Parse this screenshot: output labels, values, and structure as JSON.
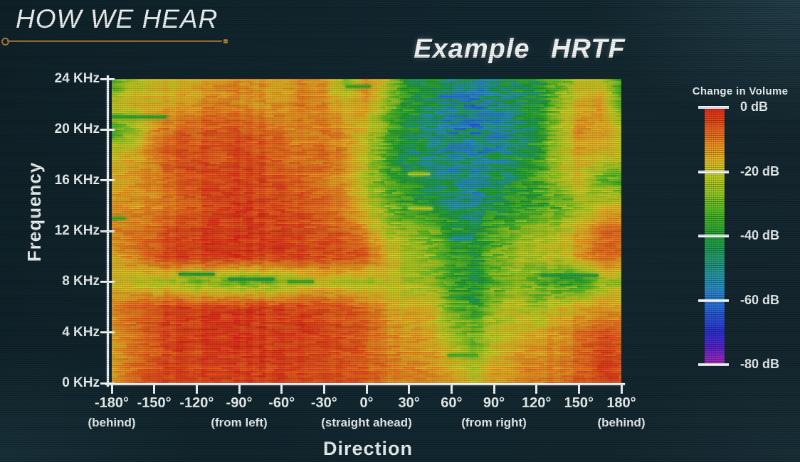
{
  "slide": {
    "title": "HOW WE HEAR",
    "accent_color": "#a07a42",
    "background_color": "#112530",
    "text_color": "#e9eff0"
  },
  "chart_data": {
    "type": "heatmap",
    "title": "Example HRTF",
    "xlabel": "Direction",
    "ylabel": "Frequency",
    "x_range_deg": [
      -180,
      180
    ],
    "y_range_khz": [
      0,
      24
    ],
    "value_range_db": [
      0,
      -80
    ],
    "x_ticks": [
      {
        "deg": -180,
        "label": "-180°"
      },
      {
        "deg": -150,
        "label": "-150°"
      },
      {
        "deg": -120,
        "label": "-120°"
      },
      {
        "deg": -90,
        "label": "-90°"
      },
      {
        "deg": -60,
        "label": "-60°"
      },
      {
        "deg": -30,
        "label": "-30°"
      },
      {
        "deg": 0,
        "label": "0°"
      },
      {
        "deg": 30,
        "label": "30°"
      },
      {
        "deg": 60,
        "label": "60°"
      },
      {
        "deg": 90,
        "label": "90°"
      },
      {
        "deg": 120,
        "label": "120°"
      },
      {
        "deg": 150,
        "label": "150°"
      },
      {
        "deg": 180,
        "label": "180°"
      }
    ],
    "x_sub_labels": [
      {
        "deg": -180,
        "label": "(behind)"
      },
      {
        "deg": -90,
        "label": "(from left)"
      },
      {
        "deg": 0,
        "label": "(straight ahead)"
      },
      {
        "deg": 90,
        "label": "(from right)"
      },
      {
        "deg": 180,
        "label": "(behind)"
      }
    ],
    "y_ticks": [
      {
        "khz": 24,
        "label": "24 KHz"
      },
      {
        "khz": 20,
        "label": "20 KHz"
      },
      {
        "khz": 16,
        "label": "16 KHz"
      },
      {
        "khz": 12,
        "label": "12 KHz"
      },
      {
        "khz": 8,
        "label": "8 KHz"
      },
      {
        "khz": 4,
        "label": "4 KHz"
      },
      {
        "khz": 0,
        "label": "0 KHz"
      }
    ],
    "colorbar": {
      "title": "Change in Volume",
      "ticks": [
        {
          "db": 0,
          "label": "0 dB"
        },
        {
          "db": -20,
          "label": "-20 dB"
        },
        {
          "db": -40,
          "label": "-40 dB"
        },
        {
          "db": -60,
          "label": "-60 dB"
        },
        {
          "db": -80,
          "label": "-80 dB"
        }
      ]
    },
    "colormap_stops": [
      [
        0,
        229,
        40,
        26
      ],
      [
        -8,
        240,
        112,
        32
      ],
      [
        -15,
        238,
        180,
        38
      ],
      [
        -20,
        208,
        210,
        38
      ],
      [
        -26,
        158,
        205,
        36
      ],
      [
        -32,
        88,
        190,
        40
      ],
      [
        -40,
        34,
        164,
        52
      ],
      [
        -48,
        36,
        158,
        122
      ],
      [
        -55,
        42,
        148,
        196
      ],
      [
        -62,
        42,
        110,
        220
      ],
      [
        -70,
        44,
        48,
        212
      ],
      [
        -75,
        96,
        38,
        206
      ],
      [
        -80,
        176,
        44,
        188
      ]
    ],
    "grid_x_deg": [
      -180,
      -165,
      -150,
      -135,
      -120,
      -105,
      -90,
      -75,
      -60,
      -45,
      -30,
      -15,
      0,
      15,
      30,
      45,
      60,
      75,
      90,
      105,
      120,
      135,
      150,
      165,
      180
    ],
    "grid_y_khz": [
      24,
      22,
      20,
      18,
      16,
      14,
      12,
      10,
      8,
      6,
      4,
      2,
      0
    ],
    "grid_db": [
      [
        -36,
        -22,
        -18,
        -20,
        -16,
        -13,
        -12,
        -14,
        -16,
        -12,
        -14,
        -26,
        -12,
        -22,
        -38,
        -42,
        -45,
        -48,
        -46,
        -44,
        -40,
        -30,
        -22,
        -20,
        -36
      ],
      [
        -20,
        -18,
        -16,
        -16,
        -13,
        -10,
        -12,
        -13,
        -14,
        -10,
        -12,
        -18,
        -14,
        -26,
        -40,
        -46,
        -50,
        -54,
        -50,
        -46,
        -42,
        -26,
        -16,
        -14,
        -30
      ],
      [
        -34,
        -26,
        -12,
        -9,
        -7,
        -6,
        -6,
        -8,
        -10,
        -12,
        -10,
        -14,
        -20,
        -32,
        -42,
        -48,
        -52,
        -55,
        -52,
        -46,
        -40,
        -24,
        -13,
        -14,
        -22
      ],
      [
        -18,
        -16,
        -10,
        -6,
        -5,
        -6,
        -5,
        -6,
        -8,
        -10,
        -8,
        -12,
        -22,
        -34,
        -44,
        -48,
        -50,
        -52,
        -50,
        -44,
        -38,
        -22,
        -16,
        -18,
        -20
      ],
      [
        -16,
        -14,
        -12,
        -8,
        -5,
        -4,
        -4,
        -5,
        -6,
        -8,
        -10,
        -14,
        -24,
        -32,
        -40,
        -46,
        -48,
        -50,
        -46,
        -42,
        -34,
        -24,
        -18,
        -30,
        -34
      ],
      [
        -14,
        -13,
        -12,
        -10,
        -6,
        -4,
        -3,
        -4,
        -5,
        -6,
        -8,
        -12,
        -20,
        -28,
        -36,
        -42,
        -46,
        -48,
        -44,
        -38,
        -34,
        -33,
        -25,
        -20,
        -18
      ],
      [
        -12,
        -10,
        -8,
        -5,
        -4,
        -3,
        -3,
        -4,
        -4,
        -5,
        -6,
        -8,
        -14,
        -22,
        -26,
        -30,
        -38,
        -42,
        -34,
        -28,
        -24,
        -22,
        -16,
        -10,
        -8
      ],
      [
        -16,
        -12,
        -6,
        -4,
        -3,
        -2,
        -2,
        -3,
        -3,
        -4,
        -4,
        -5,
        -8,
        -16,
        -22,
        -26,
        -34,
        -40,
        -30,
        -24,
        -22,
        -20,
        -14,
        -8,
        -10
      ],
      [
        -18,
        -20,
        -22,
        -24,
        -28,
        -26,
        -30,
        -28,
        -26,
        -22,
        -20,
        -22,
        -24,
        -20,
        -24,
        -26,
        -36,
        -42,
        -32,
        -26,
        -30,
        -36,
        -36,
        -26,
        -24
      ],
      [
        -12,
        -8,
        -5,
        -4,
        -4,
        -3,
        -3,
        -4,
        -4,
        -4,
        -5,
        -6,
        -10,
        -14,
        -16,
        -18,
        -30,
        -36,
        -26,
        -20,
        -26,
        -18,
        -16,
        -14,
        -16
      ],
      [
        -14,
        -10,
        -6,
        -4,
        -3,
        -2,
        -2,
        -3,
        -3,
        -3,
        -4,
        -5,
        -8,
        -12,
        -14,
        -16,
        -24,
        -30,
        -22,
        -18,
        -16,
        -14,
        -10,
        -6,
        -8
      ],
      [
        -16,
        -10,
        -6,
        -4,
        -4,
        -3,
        -3,
        -3,
        -4,
        -4,
        -4,
        -6,
        -8,
        -10,
        -12,
        -14,
        -18,
        -24,
        -18,
        -14,
        -12,
        -12,
        -8,
        -4,
        -6
      ],
      [
        -14,
        -8,
        -5,
        -4,
        -4,
        -4,
        -4,
        -4,
        -4,
        -5,
        -5,
        -6,
        -8,
        -10,
        -12,
        -12,
        -14,
        -18,
        -14,
        -12,
        -10,
        -10,
        -8,
        -5,
        -6
      ]
    ],
    "streaks": [
      {
        "d0": -180,
        "d1": -142,
        "khz": 21.0,
        "db": -38
      },
      {
        "d0": -180,
        "d1": -171,
        "khz": 13.0,
        "db": -35
      },
      {
        "d0": -14,
        "d1": 2,
        "khz": 23.4,
        "db": -36
      },
      {
        "d0": -132,
        "d1": -108,
        "khz": 8.6,
        "db": -40
      },
      {
        "d0": -97,
        "d1": -66,
        "khz": 8.2,
        "db": -42
      },
      {
        "d0": -55,
        "d1": -38,
        "khz": 8.0,
        "db": -36
      },
      {
        "d0": 52,
        "d1": 72,
        "khz": 22.6,
        "db": -60
      },
      {
        "d0": 78,
        "d1": 96,
        "khz": 21.2,
        "db": -58
      },
      {
        "d0": 86,
        "d1": 100,
        "khz": 19.4,
        "db": -58
      },
      {
        "d0": 58,
        "d1": 74,
        "khz": 18.6,
        "db": -58
      },
      {
        "d0": 68,
        "d1": 86,
        "khz": 15.8,
        "db": -56
      },
      {
        "d0": 60,
        "d1": 74,
        "khz": 11.4,
        "db": -54
      },
      {
        "d0": 124,
        "d1": 163,
        "khz": 8.5,
        "db": -42
      },
      {
        "d0": 58,
        "d1": 78,
        "khz": 2.2,
        "db": -34
      },
      {
        "d0": 30,
        "d1": 44,
        "khz": 16.5,
        "db": -22
      },
      {
        "d0": 30,
        "d1": 46,
        "khz": 13.8,
        "db": -22
      }
    ]
  }
}
